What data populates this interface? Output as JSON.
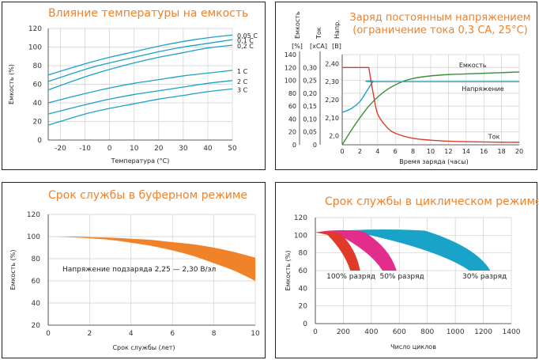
{
  "chart_data": [
    {
      "type": "line",
      "title": "Влияние температуры на емкость",
      "xlabel": "Температура (°C)",
      "ylabel": "Емкость (%)",
      "xlim": [
        -25,
        50
      ],
      "ylim": [
        0,
        120
      ],
      "x_ticks": [
        "-20",
        "-10",
        "0",
        "10",
        "20",
        "30",
        "40",
        "50"
      ],
      "y_ticks": [
        "0",
        "20",
        "40",
        "60",
        "80",
        "100",
        "120"
      ],
      "grid": true,
      "line_color": "#1aa3c8",
      "series": [
        {
          "name": "0,05 C",
          "x": [
            -25,
            -10,
            0,
            10,
            20,
            30,
            40,
            50
          ],
          "y": [
            70,
            82,
            89,
            95,
            101,
            106,
            110,
            113
          ]
        },
        {
          "name": "0,1 C",
          "x": [
            -25,
            -10,
            0,
            10,
            20,
            30,
            40,
            50
          ],
          "y": [
            63,
            76,
            83,
            89,
            95,
            100,
            104,
            108
          ]
        },
        {
          "name": "0,2 C",
          "x": [
            -25,
            -10,
            0,
            10,
            20,
            30,
            40,
            50
          ],
          "y": [
            54,
            68,
            76,
            83,
            89,
            94,
            99,
            102
          ]
        },
        {
          "name": "1 C",
          "x": [
            -25,
            -10,
            0,
            10,
            20,
            30,
            40,
            50
          ],
          "y": [
            40,
            50,
            56,
            61,
            65,
            69,
            72,
            75
          ]
        },
        {
          "name": "2 C",
          "x": [
            -25,
            -10,
            0,
            10,
            20,
            30,
            40,
            50
          ],
          "y": [
            28,
            38,
            44,
            49,
            53,
            57,
            61,
            64
          ]
        },
        {
          "name": "3 C",
          "x": [
            -25,
            -10,
            0,
            10,
            20,
            30,
            40,
            50
          ],
          "y": [
            16,
            28,
            34,
            39,
            44,
            48,
            52,
            55
          ]
        }
      ]
    },
    {
      "type": "line",
      "title": "Заряд постоянным напряжением",
      "subtitle": "(ограничение тока 0,3 CA, 25°C)",
      "xlabel": "Время заряда (часы)",
      "xlim": [
        0,
        20
      ],
      "x_ticks": [
        "0",
        "2",
        "4",
        "6",
        "8",
        "10",
        "12",
        "14",
        "16",
        "18",
        "20"
      ],
      "axes_headers": [
        {
          "name": "Емкость",
          "unit": "[%]"
        },
        {
          "name": "Ток",
          "unit": "[xCA]"
        },
        {
          "name": "Напр.",
          "unit": "[В]"
        }
      ],
      "capacity_ticks": [
        "0",
        "20",
        "40",
        "60",
        "80",
        "100",
        "120",
        "140"
      ],
      "current_ticks": [
        "0",
        "0,05",
        "0,10",
        "0,15",
        "0,20",
        "0,25",
        "0,30"
      ],
      "voltage_ticks": [
        "2,0",
        "2,10",
        "2,20",
        "2,30",
        "2,40"
      ],
      "grid": true,
      "series": [
        {
          "name": "Емкость",
          "color": "#3d8f3d",
          "x": [
            0,
            1,
            2,
            3,
            4,
            5,
            6,
            7,
            8,
            10,
            12,
            14,
            16,
            18,
            20
          ],
          "y": [
            0,
            22,
            42,
            60,
            74,
            85,
            93,
            99,
            103,
            107,
            109,
            110,
            111,
            112,
            113
          ],
          "units": "%"
        },
        {
          "name": "Напряжение",
          "color": "#1aa3c8",
          "x": [
            0,
            1,
            2,
            2.8,
            3.5,
            4,
            20
          ],
          "y": [
            2.13,
            2.15,
            2.19,
            2.25,
            2.3,
            2.3,
            2.3
          ],
          "units": "V"
        },
        {
          "name": "Ток",
          "color": "#e03a2a",
          "x": [
            0,
            3,
            3.5,
            4,
            5,
            6,
            8,
            10,
            12,
            14,
            16,
            18,
            20
          ],
          "y": [
            0.3,
            0.3,
            0.2,
            0.12,
            0.07,
            0.045,
            0.025,
            0.018,
            0.014,
            0.012,
            0.011,
            0.01,
            0.01
          ],
          "units": "xCA"
        }
      ]
    },
    {
      "type": "area",
      "title": "Срок службы в буферном режиме",
      "xlabel": "Срок службы (лет)",
      "ylabel": "Емкость (%)",
      "xlim": [
        0,
        10
      ],
      "ylim": [
        20,
        120
      ],
      "x_ticks": [
        "0",
        "2",
        "4",
        "6",
        "8",
        "10"
      ],
      "y_ticks": [
        "20",
        "40",
        "60",
        "80",
        "100",
        "120"
      ],
      "grid": true,
      "annotation": "Напряжение подзаряда 2,25 — 2,30 В/эл",
      "fill_color": "#f0822a",
      "band": {
        "x": [
          0,
          1,
          2,
          3,
          4,
          5,
          6,
          7,
          8,
          9,
          10
        ],
        "upper": [
          100,
          100,
          99.5,
          99,
          98,
          97,
          95,
          93,
          90,
          86,
          81
        ],
        "lower": [
          100,
          99.5,
          98.5,
          97,
          94.5,
          91.5,
          87.5,
          82.5,
          76,
          69,
          60
        ]
      }
    },
    {
      "type": "area",
      "title": "Срок службы в циклическом режиме",
      "xlabel": "Число циклов",
      "ylabel": "Емкость (%)",
      "xlim": [
        0,
        1400
      ],
      "ylim": [
        0,
        120
      ],
      "x_ticks": [
        "0",
        "200",
        "400",
        "600",
        "800",
        "1000",
        "1200",
        "1400"
      ],
      "y_ticks": [
        "0",
        "20",
        "40",
        "60",
        "80",
        "100",
        "120"
      ],
      "grid": true,
      "bands": [
        {
          "label": "30% разряд",
          "color": "#1aa3c8",
          "start": [
            0,
            103
          ],
          "end_range": [
            1100,
            1250
          ],
          "peak": [
            400,
            107
          ],
          "end_y": 60
        },
        {
          "label": "50% разряд",
          "color": "#e32d8c",
          "start": [
            0,
            103
          ],
          "end_range": [
            480,
            580
          ],
          "peak": [
            150,
            106
          ],
          "end_y": 60
        },
        {
          "label": "100% разряд",
          "color": "#e03a2a",
          "start": [
            0,
            103
          ],
          "end_range": [
            250,
            320
          ],
          "peak": [
            60,
            104
          ],
          "end_y": 60
        }
      ]
    }
  ]
}
